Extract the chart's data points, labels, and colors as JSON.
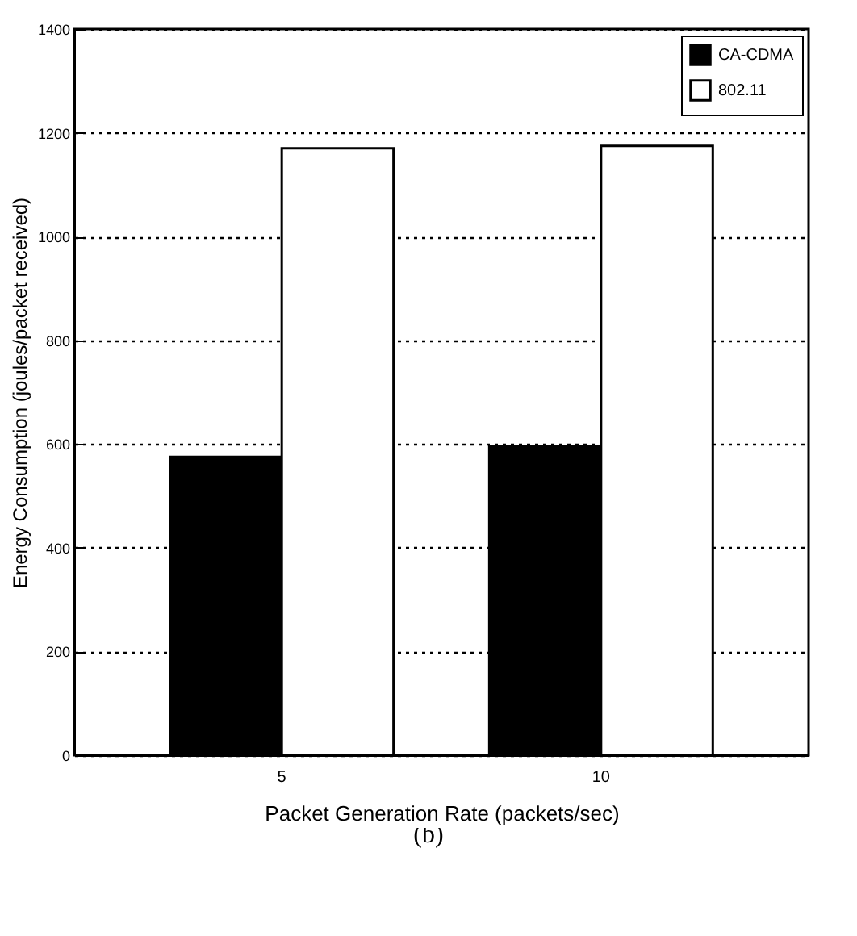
{
  "chart_data": {
    "type": "bar",
    "xlabel": "Packet Generation Rate (packets/sec)",
    "ylabel": "Energy Consumption (joules/packet received)",
    "categories": [
      "5",
      "10"
    ],
    "series": [
      {
        "name": "CA-CDMA",
        "color": "#000000",
        "values": [
          575,
          595
        ]
      },
      {
        "name": "802.11",
        "color": "#ffffff",
        "values": [
          1170,
          1175
        ]
      }
    ],
    "ylim": [
      0,
      1400
    ],
    "yticks": [
      0,
      200,
      400,
      600,
      800,
      1000,
      1200,
      1400
    ],
    "grid": "y",
    "legend": "top right",
    "annotations": [
      "(b)"
    ]
  }
}
